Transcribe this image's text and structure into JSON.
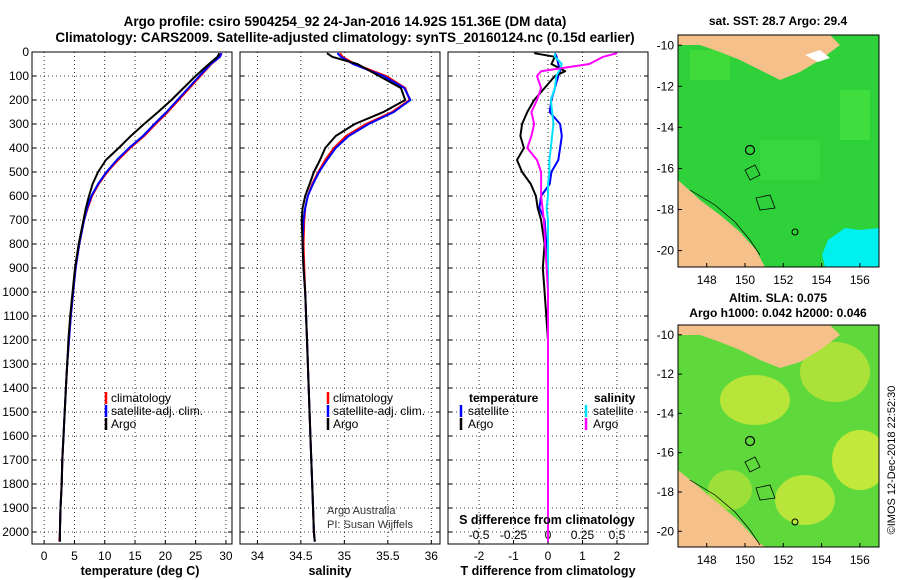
{
  "title": {
    "line1": "Argo profile: csiro 5904254_92 24-Jan-2016 14.92S 151.36E (DM data)",
    "line2": "Climatology: CARS2009. Satellite-adjusted climatology: synTS_20160124.nc (0.15d earlier)"
  },
  "colors": {
    "climatology": "#ff0000",
    "satellite": "#0000ff",
    "argo": "#000000",
    "argo_salinity": "#ff00ff",
    "satellite_salinity": "#00e0ff",
    "land": "#f5c08a"
  },
  "depth_axis": {
    "min": 0,
    "max": 2050,
    "ticks": [
      0,
      100,
      200,
      300,
      400,
      500,
      600,
      700,
      800,
      900,
      1000,
      1100,
      1200,
      1300,
      1400,
      1500,
      1600,
      1700,
      1800,
      1900,
      2000
    ]
  },
  "chart_data": [
    {
      "type": "line",
      "xlabel": "temperature (deg C)",
      "ylabel": "depth",
      "xlim": [
        -2,
        31
      ],
      "ylim": [
        2050,
        0
      ],
      "xticks": [
        0,
        5,
        10,
        15,
        20,
        25,
        30
      ],
      "legend": [
        "climatology",
        "satellite-adj. clim.",
        "Argo"
      ],
      "depth": [
        5,
        20,
        50,
        100,
        150,
        200,
        250,
        300,
        350,
        400,
        450,
        500,
        550,
        600,
        650,
        700,
        800,
        900,
        1000,
        1100,
        1200,
        1300,
        1400,
        1500,
        1600,
        1700,
        1800,
        1900,
        2000,
        2040
      ],
      "series": [
        {
          "name": "climatology",
          "values": [
            29.2,
            29.0,
            27.6,
            25.8,
            24.0,
            22.2,
            20.4,
            18.4,
            16.5,
            14.2,
            12.2,
            10.4,
            9.0,
            7.9,
            7.2,
            6.6,
            5.8,
            5.2,
            4.8,
            4.4,
            4.1,
            3.8,
            3.6,
            3.4,
            3.2,
            3.0,
            2.9,
            2.7,
            2.6,
            2.5
          ]
        },
        {
          "name": "satellite-adj. clim.",
          "values": [
            29.3,
            29.0,
            27.5,
            25.6,
            23.8,
            22.0,
            20.2,
            18.2,
            16.3,
            14.0,
            12.0,
            10.3,
            8.9,
            7.8,
            7.1,
            6.6,
            5.8,
            5.2,
            4.8,
            4.4,
            4.1,
            3.8,
            3.6,
            3.4,
            3.2,
            3.0,
            2.9,
            2.7,
            2.6,
            2.6
          ]
        },
        {
          "name": "Argo",
          "values": [
            28.9,
            28.6,
            27.2,
            25.0,
            23.0,
            21.0,
            18.8,
            16.5,
            14.3,
            12.3,
            10.2,
            8.9,
            8.0,
            7.4,
            6.9,
            6.5,
            5.7,
            5.1,
            4.7,
            4.3,
            4.0,
            3.8,
            3.6,
            3.4,
            3.2,
            3.0,
            2.9,
            2.7,
            2.6,
            2.6
          ]
        }
      ]
    },
    {
      "type": "line",
      "xlabel": "salinity",
      "ylabel": "depth",
      "xlim": [
        33.8,
        36.1
      ],
      "ylim": [
        2050,
        0
      ],
      "xticks": [
        34,
        34.5,
        35,
        35.5,
        36
      ],
      "legend": [
        "climatology",
        "satellite-adj. clim.",
        "Argo"
      ],
      "credit": [
        "Argo Australia",
        "PI: Susan Wijffels"
      ],
      "depth": [
        5,
        20,
        50,
        100,
        150,
        200,
        250,
        300,
        350,
        400,
        450,
        500,
        550,
        600,
        650,
        700,
        800,
        900,
        1000,
        1200,
        1400,
        1600,
        1800,
        2000,
        2040
      ],
      "series": [
        {
          "name": "climatology",
          "values": [
            34.95,
            34.98,
            35.12,
            35.48,
            35.7,
            35.75,
            35.55,
            35.25,
            35.02,
            34.88,
            34.78,
            34.7,
            34.63,
            34.58,
            34.55,
            34.54,
            34.53,
            34.54,
            34.55,
            34.57,
            34.59,
            34.61,
            34.63,
            34.65,
            34.66
          ]
        },
        {
          "name": "satellite-adj. clim.",
          "values": [
            34.92,
            34.96,
            35.1,
            35.45,
            35.69,
            35.76,
            35.57,
            35.28,
            35.05,
            34.9,
            34.8,
            34.71,
            34.64,
            34.58,
            34.55,
            34.53,
            34.52,
            34.53,
            34.55,
            34.57,
            34.59,
            34.61,
            34.63,
            34.65,
            34.66
          ]
        },
        {
          "name": "Argo",
          "values": [
            34.8,
            34.86,
            35.15,
            35.4,
            35.65,
            35.7,
            35.45,
            35.12,
            34.9,
            34.78,
            34.72,
            34.65,
            34.6,
            34.55,
            34.52,
            34.51,
            34.52,
            34.53,
            34.55,
            34.57,
            34.59,
            34.61,
            34.63,
            34.65,
            34.66
          ]
        }
      ]
    },
    {
      "type": "line",
      "xlabel": "T difference from climatology",
      "xlabel_top": "S difference from climatology",
      "ylabel": "depth",
      "xlim": [
        -2.9,
        2.9
      ],
      "ylim": [
        2050,
        0
      ],
      "xticks": [
        -2,
        -1,
        0,
        1,
        2
      ],
      "xticks_top": [
        -0.5,
        -0.25,
        0,
        0.25,
        0.5
      ],
      "xticks_top_labels": [
        "-0.5",
        "-0.25",
        "0",
        "0.25",
        "0.5"
      ],
      "legend_left_title": "temperature",
      "legend_right_title": "salinity",
      "legend_left": [
        "satellite",
        "Argo"
      ],
      "legend_right": [
        "satellite",
        "Argo"
      ],
      "depth": [
        5,
        20,
        50,
        80,
        100,
        150,
        200,
        250,
        300,
        350,
        400,
        450,
        500,
        550,
        600,
        650,
        700,
        800,
        900,
        1000,
        1200,
        1400,
        1600,
        1800,
        2000,
        2040
      ],
      "series": [
        {
          "name": "temperature satellite",
          "values": [
            0.2,
            0.25,
            0.3,
            0.35,
            0.3,
            0.2,
            0.1,
            0.05,
            0.35,
            0.4,
            0.35,
            0.3,
            0.1,
            0.05,
            -0.2,
            -0.25,
            -0.1,
            -0.05,
            0,
            0,
            0,
            0,
            0,
            0,
            0,
            0
          ]
        },
        {
          "name": "temperature Argo",
          "values": [
            -0.4,
            0.2,
            0.1,
            0.5,
            0.2,
            -0.1,
            -0.4,
            -0.6,
            -0.75,
            -0.8,
            -0.7,
            -0.9,
            -0.75,
            -0.5,
            -0.35,
            -0.3,
            -0.2,
            -0.1,
            -0.15,
            -0.1,
            0,
            0,
            0,
            0,
            0,
            0
          ]
        },
        {
          "name": "salinity satellite",
          "values": [
            0.05,
            0.05,
            0.1,
            0.08,
            0.06,
            0.05,
            0.02,
            0.03,
            0.04,
            0.03,
            0.02,
            0.01,
            0.01,
            0.0,
            0.0,
            -0.01,
            0,
            0,
            0,
            0,
            0,
            0,
            0,
            0,
            0,
            0
          ]
        },
        {
          "name": "salinity Argo",
          "values": [
            0.5,
            0.4,
            0.3,
            -0.05,
            -0.08,
            -0.05,
            -0.08,
            -0.12,
            -0.1,
            -0.12,
            -0.15,
            -0.08,
            -0.05,
            -0.05,
            -0.05,
            -0.04,
            -0.03,
            -0.02,
            -0.01,
            0,
            0,
            0,
            0,
            0,
            0,
            0
          ]
        }
      ]
    },
    {
      "type": "heatmap",
      "title": "sat. SST: 28.7 Argo: 29.4",
      "xticks": [
        "148",
        "150",
        "152",
        "154",
        "156"
      ],
      "yticks": [
        "-10",
        "-12",
        "-14",
        "-16",
        "-18",
        "-20"
      ],
      "xlim": [
        146.5,
        157
      ],
      "ylim": [
        -20.8,
        -9.5
      ]
    },
    {
      "type": "heatmap",
      "title_line1": "Altim. SLA: 0.075",
      "title_line2": "Argo h1000: 0.042 h2000: 0.046",
      "xticks": [
        "148",
        "150",
        "152",
        "154",
        "156"
      ],
      "yticks": [
        "-10",
        "-12",
        "-14",
        "-16",
        "-18",
        "-20"
      ],
      "xlim": [
        146.5,
        157
      ],
      "ylim": [
        -20.8,
        -9.5
      ]
    }
  ],
  "argo_position": {
    "lon": 151.36,
    "lat": -14.92
  },
  "watermark": "©IMOS 12-Dec-2018 22:52:30"
}
